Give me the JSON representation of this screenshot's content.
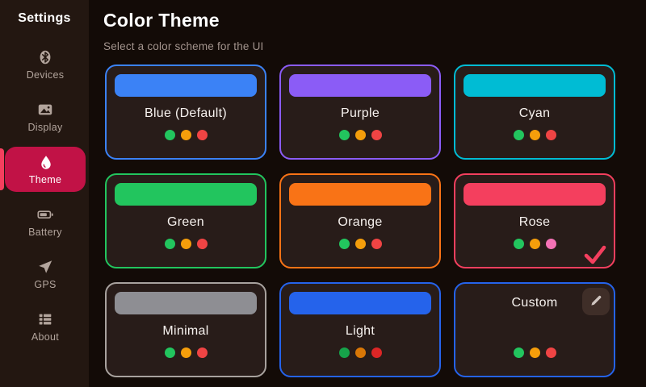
{
  "sidebar": {
    "title": "Settings",
    "items": [
      {
        "id": "devices",
        "label": "Devices",
        "icon": "bluetooth-icon",
        "active": false
      },
      {
        "id": "display",
        "label": "Display",
        "icon": "image-icon",
        "active": false
      },
      {
        "id": "theme",
        "label": "Theme",
        "icon": "droplet-icon",
        "active": true
      },
      {
        "id": "battery",
        "label": "Battery",
        "icon": "battery-icon",
        "active": false
      },
      {
        "id": "gps",
        "label": "GPS",
        "icon": "navigation-icon",
        "active": false
      },
      {
        "id": "about",
        "label": "About",
        "icon": "list-icon",
        "active": false
      }
    ],
    "active_bg": "#c11246",
    "active_accent": "#f43f5e"
  },
  "header": {
    "title": "Color Theme",
    "subtitle": "Select a color scheme for the UI"
  },
  "theme_grid": {
    "cards": [
      {
        "id": "blue",
        "name": "Blue (Default)",
        "accent": "#3b82f6",
        "swatch": "#3b82f6",
        "dots": [
          "#22c55e",
          "#f59e0b",
          "#ef4444"
        ],
        "selected": false,
        "custom": false
      },
      {
        "id": "purple",
        "name": "Purple",
        "accent": "#8b5cf6",
        "swatch": "#8b5cf6",
        "dots": [
          "#22c55e",
          "#f59e0b",
          "#ef4444"
        ],
        "selected": false,
        "custom": false
      },
      {
        "id": "cyan",
        "name": "Cyan",
        "accent": "#00bcd4",
        "swatch": "#00bcd4",
        "dots": [
          "#22c55e",
          "#f59e0b",
          "#ef4444"
        ],
        "selected": false,
        "custom": false
      },
      {
        "id": "green",
        "name": "Green",
        "accent": "#22c55e",
        "swatch": "#22c55e",
        "dots": [
          "#22c55e",
          "#f59e0b",
          "#ef4444"
        ],
        "selected": false,
        "custom": false
      },
      {
        "id": "orange",
        "name": "Orange",
        "accent": "#f97316",
        "swatch": "#f97316",
        "dots": [
          "#22c55e",
          "#f59e0b",
          "#ef4444"
        ],
        "selected": false,
        "custom": false
      },
      {
        "id": "rose",
        "name": "Rose",
        "accent": "#f43f5e",
        "swatch": "#f43f5e",
        "dots": [
          "#22c55e",
          "#f59e0b",
          "#f472b6"
        ],
        "selected": true,
        "custom": false
      },
      {
        "id": "minimal",
        "name": "Minimal",
        "accent": "#a8a29e",
        "swatch": "#8e8e93",
        "dots": [
          "#22c55e",
          "#f59e0b",
          "#ef4444"
        ],
        "selected": false,
        "custom": false
      },
      {
        "id": "light",
        "name": "Light",
        "accent": "#2563eb",
        "swatch": "#2563eb",
        "dots": [
          "#16a34a",
          "#d97706",
          "#dc2626"
        ],
        "selected": false,
        "custom": false
      },
      {
        "id": "custom",
        "name": "Custom",
        "accent": "#2563eb",
        "swatch": null,
        "dots": [
          "#22c55e",
          "#f59e0b",
          "#ef4444"
        ],
        "selected": false,
        "custom": true,
        "edit_icon": "pencil-icon"
      }
    ]
  },
  "colors": {
    "main_bg": "#130b07",
    "sidebar_bg": "#231711",
    "card_bg": "#281c19",
    "text_primary": "#ffffff",
    "text_secondary": "#a3948d"
  }
}
